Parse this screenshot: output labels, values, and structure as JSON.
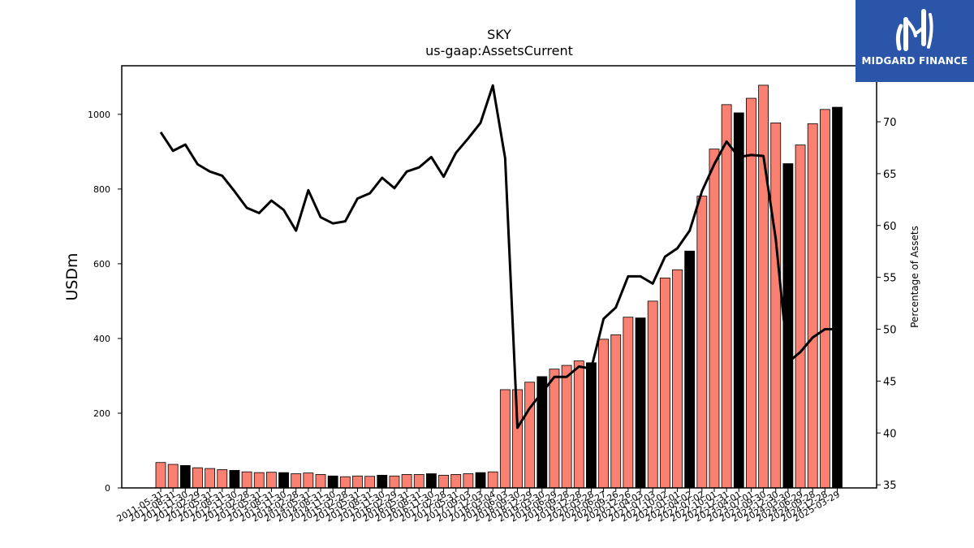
{
  "chart_data": {
    "type": "bar",
    "title": "SKY",
    "subtitle": "us-gaap:AssetsCurrent",
    "ylabel": "USDm",
    "y2label": "Percentage of Assets",
    "ylim": [
      0,
      1130
    ],
    "y2lim": [
      34.7,
      75.4
    ],
    "yticks": [
      0,
      200,
      400,
      600,
      800,
      1000
    ],
    "y2ticks": [
      35,
      40,
      45,
      50,
      55,
      60,
      65,
      70
    ],
    "colors": {
      "bar": "#fa8072",
      "bar_highlight": "#000000",
      "line": "#000000"
    },
    "series": [
      {
        "name": "AssetsCurrent",
        "kind": "bar",
        "values": [
          68,
          63,
          60,
          54,
          52,
          49,
          47,
          43,
          41,
          42,
          41,
          38,
          40,
          36,
          32,
          30,
          32,
          31,
          34,
          32,
          36,
          36,
          38,
          34,
          36,
          38,
          41,
          43,
          263,
          263,
          283,
          298,
          318,
          328,
          340,
          335,
          398,
          410,
          457,
          455,
          500,
          562,
          584,
          634,
          781,
          907,
          1026,
          1004,
          1043,
          1078,
          977,
          868,
          918,
          975,
          1013,
          1019
        ],
        "highlight": [
          false,
          false,
          true,
          false,
          false,
          false,
          true,
          false,
          false,
          false,
          true,
          false,
          false,
          false,
          true,
          false,
          false,
          false,
          true,
          false,
          false,
          false,
          true,
          false,
          false,
          false,
          true,
          false,
          false,
          false,
          false,
          true,
          false,
          false,
          false,
          true,
          false,
          false,
          false,
          true,
          false,
          false,
          false,
          true,
          false,
          false,
          false,
          true,
          false,
          false,
          false,
          true,
          false,
          false,
          false,
          true
        ]
      },
      {
        "name": "Percentage of Assets",
        "kind": "line",
        "axis": "right",
        "values": [
          69.0,
          67.2,
          67.8,
          65.9,
          65.2,
          64.8,
          63.3,
          61.7,
          61.2,
          62.4,
          61.5,
          59.5,
          63.4,
          60.8,
          60.2,
          60.4,
          62.6,
          63.1,
          64.6,
          63.6,
          65.2,
          65.6,
          66.6,
          64.7,
          67.0,
          68.4,
          69.9,
          73.5,
          66.5,
          40.5,
          42.4,
          43.9,
          45.4,
          45.4,
          46.4,
          46.2,
          51.0,
          52.1,
          55.1,
          55.1,
          54.4,
          57.0,
          57.8,
          59.5,
          63.3,
          65.9,
          68.1,
          66.6,
          66.8,
          66.7,
          58.7,
          46.8,
          47.8,
          49.2,
          50.0,
          50.0
        ]
      }
    ],
    "categories": [
      "2011-05-31",
      "2011-08-31",
      "2011-11-30",
      "2012-02-29",
      "2012-05-31",
      "2012-08-31",
      "2012-11-30",
      "2013-02-28",
      "2013-05-31",
      "2013-08-31",
      "2013-11-30",
      "2014-02-28",
      "2014-05-31",
      "2014-08-31",
      "2014-11-30",
      "2015-02-28",
      "2015-05-31",
      "2015-08-31",
      "2015-11-30",
      "2016-02-29",
      "2016-05-31",
      "2016-08-31",
      "2016-11-30",
      "2017-02-28",
      "2017-05-31",
      "2017-09-03",
      "2017-12-03",
      "2018-03-04",
      "2018-06-03",
      "2018-09-30",
      "2018-12-29",
      "2019-03-30",
      "2019-06-29",
      "2019-09-28",
      "2019-12-28",
      "2020-03-28",
      "2020-06-27",
      "2020-09-26",
      "2020-12-26",
      "2021-04-03",
      "2021-07-03",
      "2021-10-02",
      "2022-01-01",
      "2022-04-02",
      "2022-07-02",
      "2022-10-01",
      "2022-12-31",
      "2023-04-01",
      "2023-07-01",
      "2023-09-30",
      "2023-12-30",
      "2024-03-30",
      "2024-06-29",
      "2024-09-28",
      "2024-12-28",
      "2025-03-29"
    ]
  },
  "logo": {
    "text": "MIDGARD FINANCE"
  }
}
